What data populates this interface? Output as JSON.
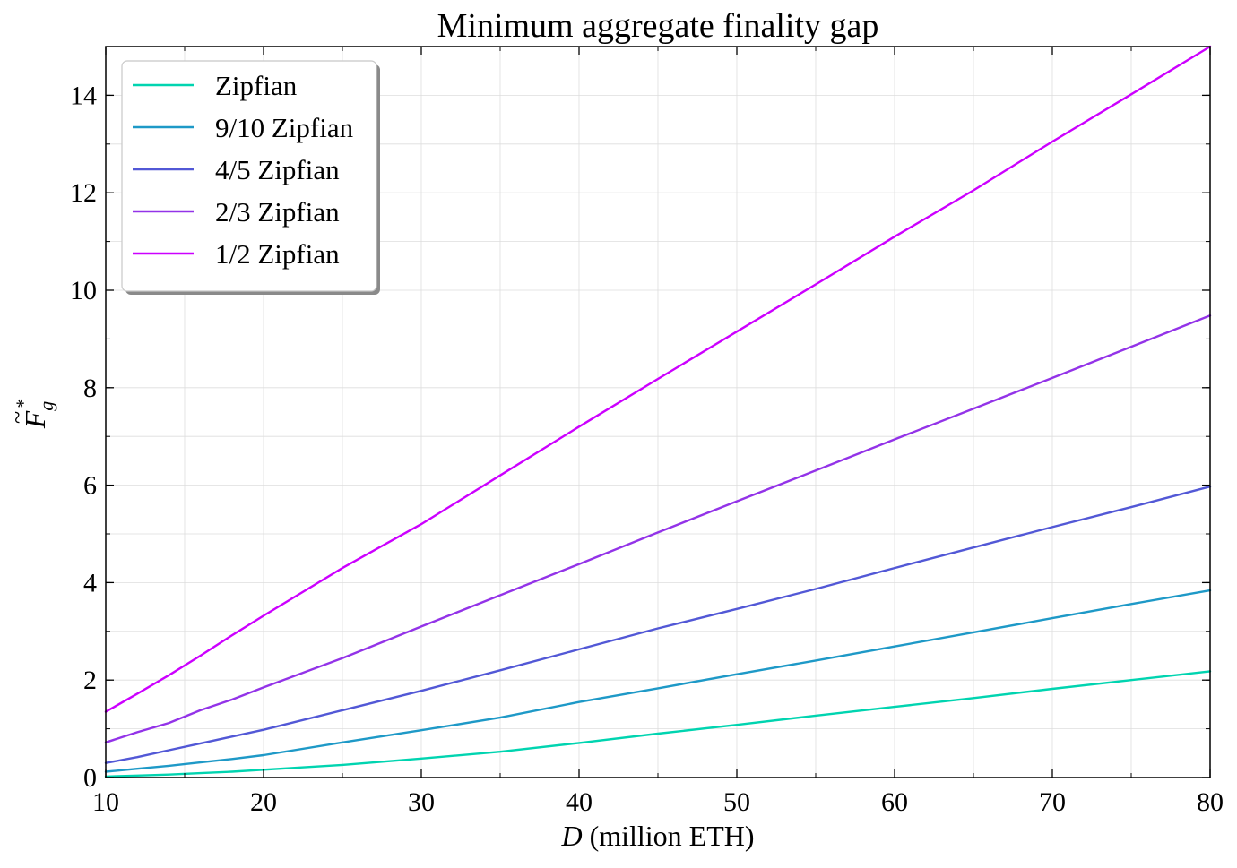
{
  "chart_data": {
    "type": "line",
    "title": "Minimum aggregate finality gap",
    "xlabel": "D (million ETH)",
    "xlabel_var": "D",
    "xlabel_rest": " (million ETH)",
    "ylabel": "F̃*_g",
    "ylabel_base": "F",
    "ylabel_sup": "*",
    "ylabel_sub": "g",
    "xlim": [
      10,
      80
    ],
    "ylim": [
      0,
      15
    ],
    "xticks": [
      10,
      20,
      30,
      40,
      50,
      60,
      70,
      80
    ],
    "yticks": [
      0,
      2,
      4,
      6,
      8,
      10,
      12,
      14
    ],
    "grid": true,
    "legend_position": "top-left",
    "x": [
      10,
      12,
      14,
      16,
      18,
      20,
      25,
      30,
      35,
      40,
      45,
      50,
      55,
      60,
      65,
      70,
      75,
      80
    ],
    "series": [
      {
        "name": "Zipfian",
        "color": "#00d4b0",
        "values": [
          0.02,
          0.04,
          0.06,
          0.09,
          0.12,
          0.16,
          0.26,
          0.39,
          0.53,
          0.71,
          0.9,
          1.08,
          1.27,
          1.45,
          1.63,
          1.82,
          2.0,
          2.18
        ]
      },
      {
        "name": "9/10 Zipfian",
        "color": "#1e99c7",
        "values": [
          0.12,
          0.18,
          0.24,
          0.31,
          0.38,
          0.46,
          0.72,
          0.97,
          1.23,
          1.55,
          1.83,
          2.12,
          2.4,
          2.69,
          2.98,
          3.27,
          3.56,
          3.84
        ]
      },
      {
        "name": "4/5 Zipfian",
        "color": "#5258d6",
        "values": [
          0.3,
          0.42,
          0.56,
          0.7,
          0.84,
          0.98,
          1.38,
          1.78,
          2.2,
          2.63,
          3.06,
          3.46,
          3.87,
          4.3,
          4.72,
          5.14,
          5.55,
          5.97
        ]
      },
      {
        "name": "2/3 Zipfian",
        "color": "#9333e8",
        "values": [
          0.72,
          0.93,
          1.12,
          1.38,
          1.6,
          1.85,
          2.45,
          3.1,
          3.74,
          4.38,
          5.03,
          5.67,
          6.3,
          6.94,
          7.57,
          8.2,
          8.84,
          9.48
        ]
      },
      {
        "name": "1/2 Zipfian",
        "color": "#cc00ff",
        "values": [
          1.35,
          1.72,
          2.1,
          2.5,
          2.92,
          3.32,
          4.3,
          5.2,
          6.2,
          7.2,
          8.18,
          9.15,
          10.12,
          11.1,
          12.05,
          13.05,
          14.02,
          15.0
        ]
      }
    ]
  }
}
